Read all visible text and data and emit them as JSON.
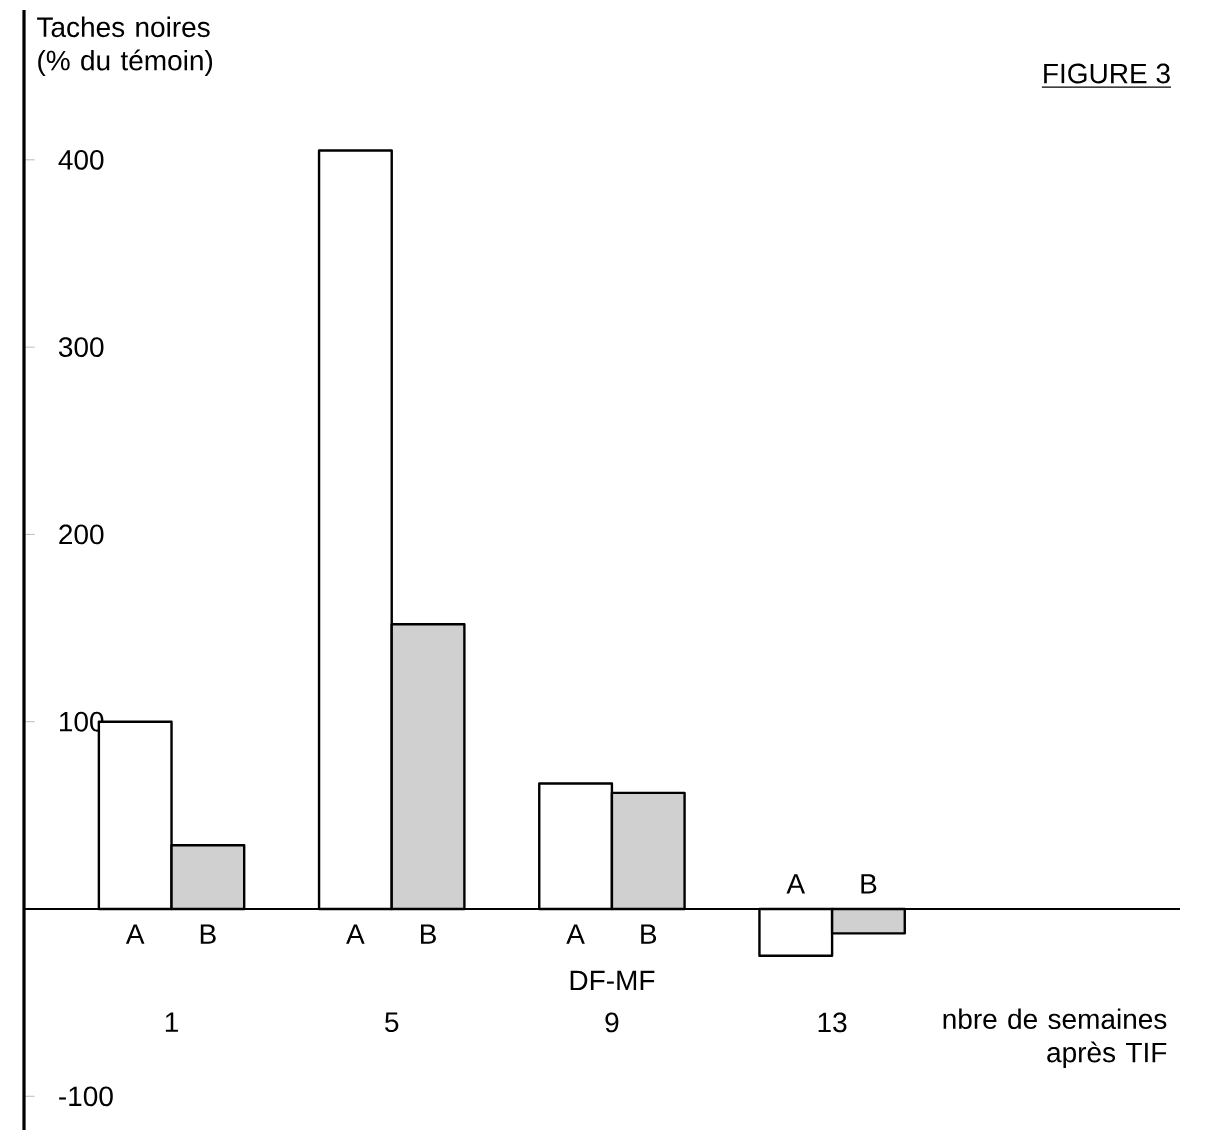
{
  "chart_data": {
    "type": "bar",
    "title": "FIGURE 3",
    "ylabel": "Taches noires (% du témoin)",
    "xlabel": "nbre de semaines après TIF",
    "categories": [
      "1",
      "5",
      "9",
      "13"
    ],
    "series": [
      {
        "name": "A",
        "color": "#ffffff",
        "values": [
          100,
          405,
          67,
          -25
        ]
      },
      {
        "name": "B",
        "color": "#d0d0d0",
        "values": [
          34,
          152,
          62,
          -13
        ]
      }
    ],
    "ylim": [
      -118,
      480
    ],
    "yticks": [
      -100,
      100,
      200,
      300,
      400
    ],
    "annotations": [
      "DF-MF"
    ],
    "legend": false,
    "grid": false
  }
}
